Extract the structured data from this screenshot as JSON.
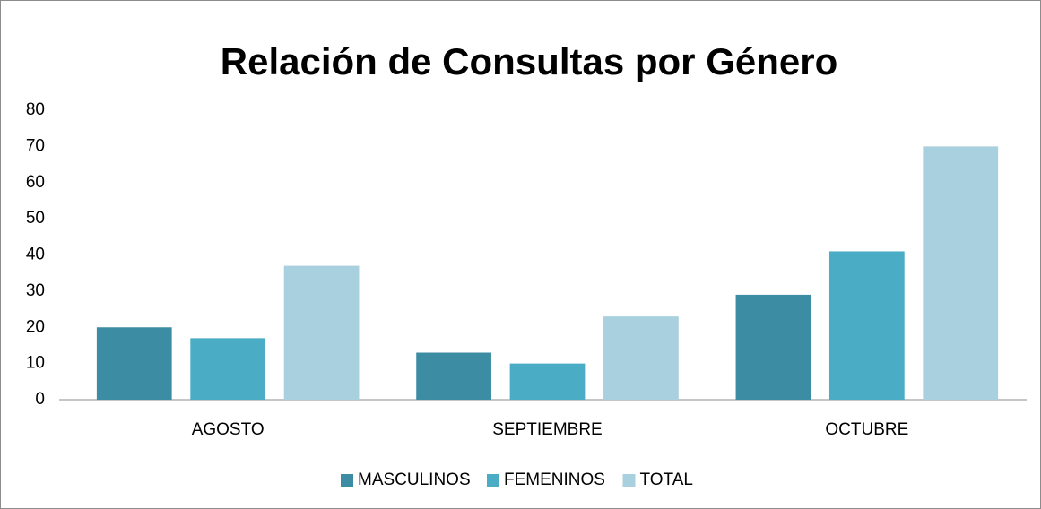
{
  "chart_data": {
    "type": "bar",
    "title": "Relación de Consultas por Género",
    "categories": [
      "AGOSTO",
      "SEPTIEMBRE",
      "OCTUBRE"
    ],
    "series": [
      {
        "name": "MASCULINOS",
        "color": "#3c8ca3",
        "values": [
          20,
          13,
          29
        ]
      },
      {
        "name": "FEMENINOS",
        "color": "#4bacc6",
        "values": [
          17,
          10,
          41
        ]
      },
      {
        "name": "TOTAL",
        "color": "#a9d0de",
        "values": [
          37,
          23,
          70
        ]
      }
    ],
    "ylim": [
      0,
      80
    ],
    "yticks": [
      0,
      10,
      20,
      30,
      40,
      50,
      60,
      70,
      80
    ],
    "grid": false,
    "legend": "bottom"
  }
}
